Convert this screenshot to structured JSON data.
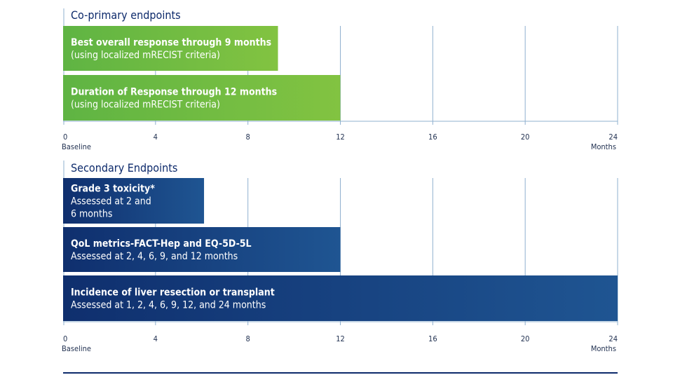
{
  "chart_data": [
    {
      "type": "bar",
      "orientation": "horizontal",
      "title": "Co-primary endpoints",
      "xlim": [
        0,
        24
      ],
      "x_ticks": [
        0,
        4,
        8,
        12,
        16,
        20,
        24
      ],
      "x_start_label": "Baseline",
      "x_end_label": "Months",
      "bars": [
        {
          "end": 9.3,
          "lines": [
            "Best overall response through 9 months",
            "(using localized mRECIST criteria)"
          ]
        },
        {
          "end": 12,
          "lines": [
            "Duration of Response through 12 months",
            "(using localized mRECIST criteria)"
          ]
        }
      ]
    },
    {
      "type": "bar",
      "orientation": "horizontal",
      "title": "Secondary Endpoints",
      "xlim": [
        0,
        24
      ],
      "x_ticks": [
        0,
        4,
        8,
        12,
        16,
        20,
        24
      ],
      "x_start_label": "Baseline",
      "x_end_label": "Months",
      "bars": [
        {
          "end": 6.1,
          "lines": [
            "Grade 3 toxicity*",
            "Assessed at 2 and",
            "6 months"
          ]
        },
        {
          "end": 12,
          "lines": [
            "QoL metrics-FACT-Hep and EQ-5D-5L",
            "Assessed at 2, 4, 6, 9, and 12 months"
          ]
        },
        {
          "end": 24,
          "lines": [
            "Incidence of liver resection or transplant",
            "Assessed at 1, 2, 4, 6, 9, 12, and 24 months"
          ]
        }
      ]
    }
  ],
  "colors": {
    "title": "#0d2a6b",
    "primary_bar_start": "#5fb443",
    "primary_bar_end": "#82c341",
    "secondary_bar_start": "#0f2f6e",
    "secondary_bar_end": "#1f5592",
    "grid": "#8fb0cf",
    "rule": "#0d2a6b"
  }
}
